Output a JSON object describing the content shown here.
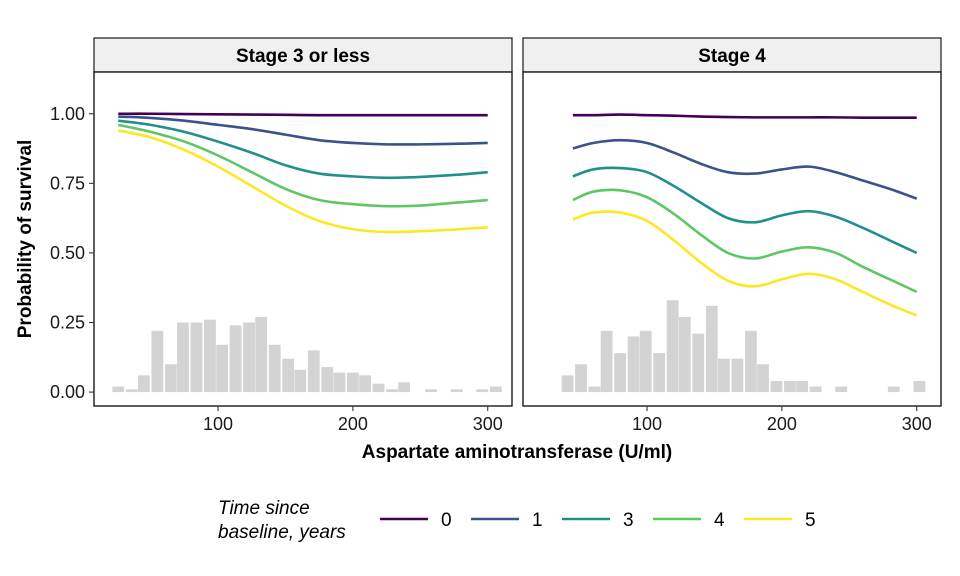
{
  "chart_data": {
    "type": "line",
    "ylabel": "Probability of survival",
    "xlabel": "Aspartate aminotransferase (U/ml)",
    "ylim": [
      -0.05,
      1.15
    ],
    "yticks": [
      0.0,
      0.25,
      0.5,
      0.75,
      1.0
    ],
    "ytick_labels": [
      "0.00",
      "0.25",
      "0.50",
      "0.75",
      "1.00"
    ],
    "xlim": [
      8,
      318
    ],
    "xticks": [
      100,
      200,
      300
    ],
    "xtick_labels": [
      "100",
      "200",
      "300"
    ],
    "grid": false,
    "legend": {
      "title_lines": [
        "Time since",
        "baseline, years"
      ],
      "position": "bottom",
      "entries": [
        {
          "label": "0",
          "color": "#440154"
        },
        {
          "label": "1",
          "color": "#3B528B"
        },
        {
          "label": "3",
          "color": "#21908C"
        },
        {
          "label": "4",
          "color": "#5DC863"
        },
        {
          "label": "5",
          "color": "#FDE725"
        }
      ]
    },
    "panels": [
      {
        "title": "Stage 3 or less",
        "series": [
          {
            "name": "0",
            "color": "#440154",
            "x": [
              26,
              50,
              75,
              100,
              125,
              150,
              175,
              200,
              225,
              250,
              275,
              300
            ],
            "y": [
              1.0,
              1.0,
              0.999,
              0.998,
              0.997,
              0.996,
              0.995,
              0.995,
              0.995,
              0.995,
              0.995,
              0.995
            ]
          },
          {
            "name": "1",
            "color": "#3B528B",
            "x": [
              26,
              50,
              75,
              100,
              125,
              150,
              175,
              200,
              225,
              250,
              275,
              300
            ],
            "y": [
              0.99,
              0.985,
              0.975,
              0.96,
              0.945,
              0.925,
              0.905,
              0.895,
              0.89,
              0.89,
              0.892,
              0.895
            ]
          },
          {
            "name": "3",
            "color": "#21908C",
            "x": [
              26,
              50,
              75,
              100,
              125,
              150,
              175,
              200,
              225,
              250,
              275,
              300
            ],
            "y": [
              0.975,
              0.96,
              0.935,
              0.9,
              0.86,
              0.815,
              0.785,
              0.775,
              0.77,
              0.773,
              0.78,
              0.79
            ]
          },
          {
            "name": "4",
            "color": "#5DC863",
            "x": [
              26,
              50,
              75,
              100,
              125,
              150,
              175,
              200,
              225,
              250,
              275,
              300
            ],
            "y": [
              0.96,
              0.935,
              0.9,
              0.85,
              0.79,
              0.73,
              0.69,
              0.675,
              0.668,
              0.67,
              0.68,
              0.69
            ]
          },
          {
            "name": "5",
            "color": "#FDE725",
            "x": [
              26,
              50,
              75,
              100,
              125,
              150,
              175,
              200,
              225,
              250,
              275,
              300
            ],
            "y": [
              0.94,
              0.915,
              0.87,
              0.81,
              0.74,
              0.67,
              0.615,
              0.585,
              0.575,
              0.578,
              0.584,
              0.592
            ]
          }
        ],
        "histogram": {
          "bin_width": 9.65,
          "centers": [
            26,
            36,
            45,
            55,
            65,
            74,
            84,
            94,
            103,
            113,
            123,
            132,
            142,
            152,
            161,
            171,
            181,
            190,
            200,
            209,
            219,
            229,
            238,
            248,
            258,
            267,
            277,
            287,
            296,
            306
          ],
          "heights": [
            0.02,
            0.01,
            0.06,
            0.22,
            0.1,
            0.25,
            0.25,
            0.26,
            0.17,
            0.24,
            0.25,
            0.27,
            0.17,
            0.12,
            0.08,
            0.15,
            0.09,
            0.07,
            0.07,
            0.06,
            0.03,
            0.01,
            0.035,
            0.0,
            0.01,
            0.0,
            0.01,
            0.0,
            0.01,
            0.02
          ]
        }
      },
      {
        "title": "Stage 4",
        "series": [
          {
            "name": "0",
            "color": "#440154",
            "x": [
              45,
              60,
              80,
              100,
              120,
              140,
              160,
              180,
              200,
              220,
              240,
              260,
              280,
              300
            ],
            "y": [
              0.995,
              0.995,
              0.997,
              0.995,
              0.993,
              0.99,
              0.988,
              0.987,
              0.987,
              0.987,
              0.987,
              0.986,
              0.986,
              0.986
            ]
          },
          {
            "name": "1",
            "color": "#3B528B",
            "x": [
              45,
              60,
              80,
              100,
              120,
              140,
              160,
              180,
              200,
              220,
              240,
              260,
              280,
              300
            ],
            "y": [
              0.875,
              0.895,
              0.905,
              0.895,
              0.86,
              0.82,
              0.79,
              0.785,
              0.8,
              0.81,
              0.79,
              0.76,
              0.73,
              0.695
            ]
          },
          {
            "name": "3",
            "color": "#21908C",
            "x": [
              45,
              60,
              80,
              100,
              120,
              140,
              160,
              180,
              200,
              220,
              240,
              260,
              280,
              300
            ],
            "y": [
              0.775,
              0.8,
              0.805,
              0.79,
              0.74,
              0.68,
              0.625,
              0.61,
              0.635,
              0.65,
              0.63,
              0.59,
              0.545,
              0.5
            ]
          },
          {
            "name": "4",
            "color": "#5DC863",
            "x": [
              45,
              60,
              80,
              100,
              120,
              140,
              160,
              180,
              200,
              220,
              240,
              260,
              280,
              300
            ],
            "y": [
              0.69,
              0.72,
              0.725,
              0.7,
              0.64,
              0.565,
              0.5,
              0.48,
              0.505,
              0.52,
              0.5,
              0.45,
              0.405,
              0.36
            ]
          },
          {
            "name": "5",
            "color": "#FDE725",
            "x": [
              45,
              60,
              80,
              100,
              120,
              140,
              160,
              180,
              200,
              220,
              240,
              260,
              280,
              300
            ],
            "y": [
              0.62,
              0.645,
              0.645,
              0.615,
              0.545,
              0.465,
              0.4,
              0.38,
              0.405,
              0.425,
              0.405,
              0.36,
              0.315,
              0.275
            ]
          }
        ],
        "histogram": {
          "bin_width": 9.65,
          "centers": [
            41,
            51,
            61,
            70,
            80,
            90,
            99,
            109,
            119,
            128,
            138,
            148,
            157,
            167,
            177,
            186,
            196,
            206,
            215,
            225,
            235,
            244,
            254,
            264,
            273,
            283,
            292,
            302
          ],
          "heights": [
            0.06,
            0.1,
            0.02,
            0.22,
            0.14,
            0.2,
            0.22,
            0.14,
            0.33,
            0.27,
            0.21,
            0.31,
            0.12,
            0.12,
            0.22,
            0.1,
            0.04,
            0.04,
            0.04,
            0.02,
            0.0,
            0.02,
            0.0,
            0.0,
            0.0,
            0.02,
            0.0,
            0.04
          ]
        }
      }
    ]
  }
}
